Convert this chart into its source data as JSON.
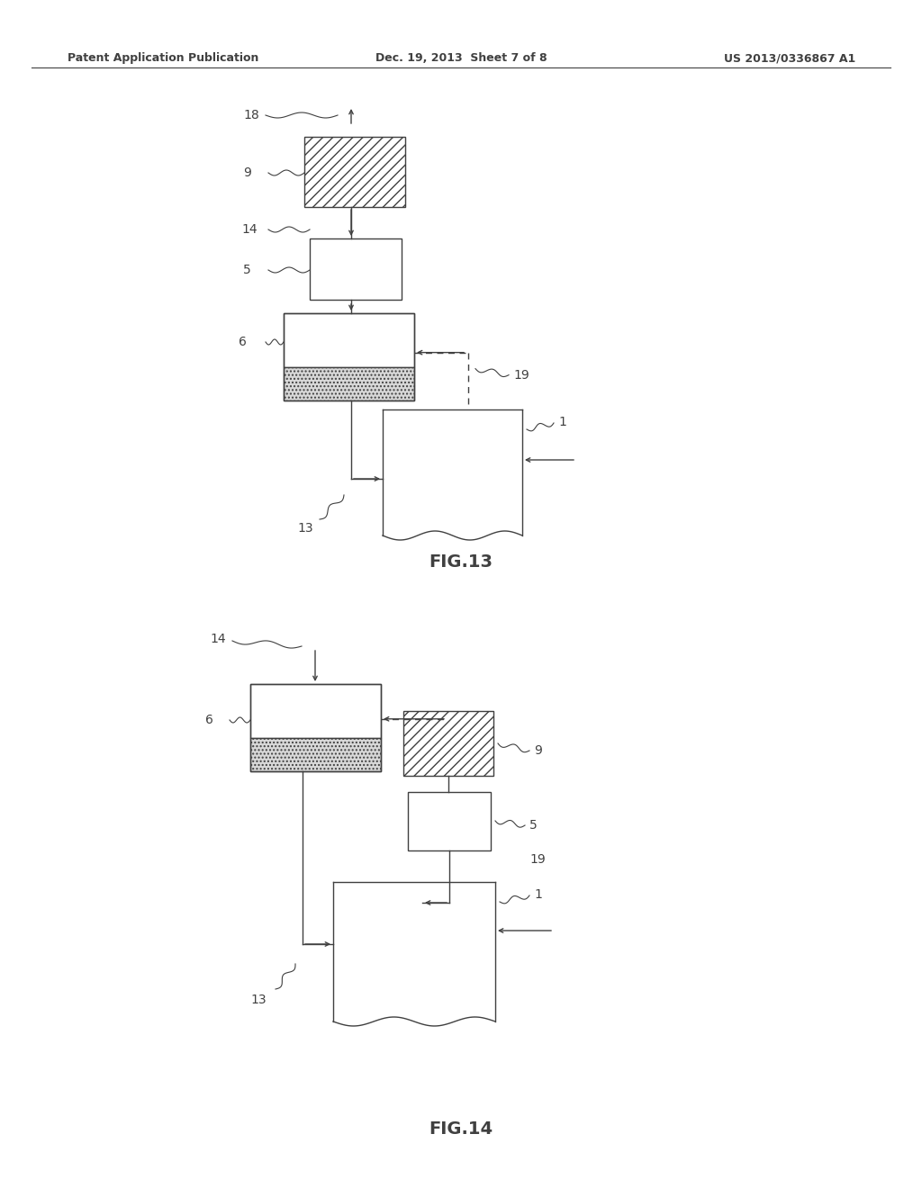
{
  "bg_color": "#ffffff",
  "line_color": "#404040",
  "header_left": "Patent Application Publication",
  "header_mid": "Dec. 19, 2013  Sheet 7 of 8",
  "header_right": "US 2013/0336867 A1",
  "fig13_label": "FIG.13",
  "fig14_label": "FIG.14"
}
